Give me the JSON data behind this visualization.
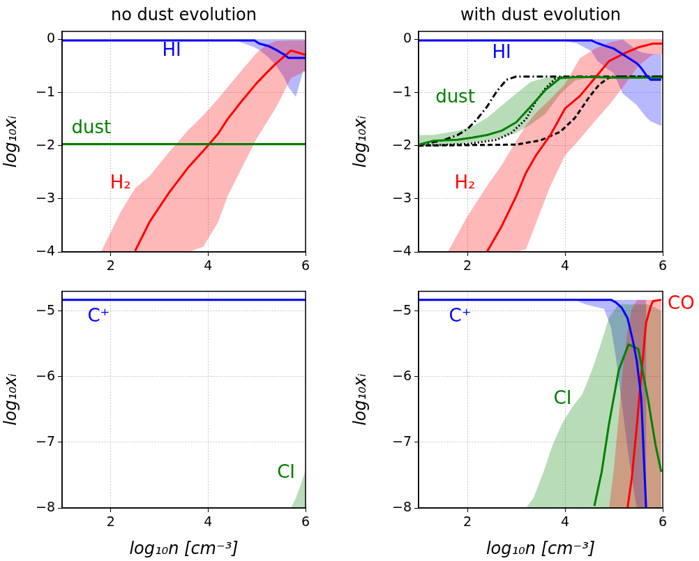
{
  "chart_data": [
    {
      "type": "line",
      "title": "no dust evolution",
      "ylabel": "log₁₀xᵢ",
      "xlim": [
        1,
        6
      ],
      "xticks": [
        2,
        4,
        6
      ],
      "ylim": [
        -4,
        0.15
      ],
      "yticks": [
        0,
        -1,
        -2,
        -3,
        -4
      ],
      "grid": true,
      "series": [
        {
          "name": "HI",
          "color": "#0000ff",
          "x": [
            1,
            4.6,
            4.95,
            5.05,
            5.25,
            5.4,
            5.55,
            5.65,
            5.8,
            5.95,
            6
          ],
          "values": [
            -0.02,
            -0.02,
            -0.02,
            -0.08,
            -0.13,
            -0.2,
            -0.28,
            -0.35,
            -0.35,
            -0.35,
            -0.35
          ],
          "upper": [
            0,
            0,
            0,
            0,
            0,
            0,
            0,
            0,
            0,
            0,
            0
          ],
          "lower": [
            -0.02,
            -0.03,
            -0.15,
            -0.2,
            -0.35,
            -0.5,
            -0.7,
            -0.9,
            -1.08,
            -0.6,
            -0.6
          ]
        },
        {
          "name": "dust",
          "color": "#008000",
          "x": [
            1,
            6
          ],
          "values": [
            -1.97,
            -1.97
          ]
        },
        {
          "name": "H₂",
          "color": "#ff0000",
          "x": [
            1.8,
            2.2,
            2.5,
            2.8,
            3.2,
            3.6,
            3.9,
            4.2,
            4.4,
            4.7,
            5.0,
            5.2,
            5.4,
            5.7,
            6.0
          ],
          "values": [
            null,
            null,
            -3.98,
            -3.43,
            -2.88,
            -2.4,
            -2.1,
            -1.78,
            -1.5,
            -1.15,
            -0.82,
            -0.63,
            -0.45,
            -0.21,
            -0.29
          ],
          "upper": [
            -4,
            -3.25,
            -2.8,
            -2.57,
            -2.12,
            -1.7,
            -1.43,
            -1.12,
            -0.9,
            -0.57,
            -0.25,
            -0.1,
            -0.03,
            -0.02,
            -0.02
          ],
          "lower": [
            -4,
            -4,
            -4,
            -4,
            -4,
            -4,
            -3.9,
            -3.45,
            -2.95,
            -2.4,
            -1.86,
            -1.57,
            -1.27,
            -0.73,
            -0.6
          ]
        }
      ]
    },
    {
      "type": "line",
      "title": "with dust evolution",
      "ylabel": "log₁₀xᵢ",
      "xlim": [
        1,
        6
      ],
      "xticks": [
        2,
        4,
        6
      ],
      "ylim": [
        -4,
        0.15
      ],
      "yticks": [
        0,
        -1,
        -2,
        -3,
        -4
      ],
      "grid": true,
      "series": [
        {
          "name": "HI",
          "color": "#0000ff",
          "x": [
            1,
            3.9,
            4.23,
            4.54,
            4.66,
            4.85,
            4.99,
            5.18,
            5.47,
            5.56,
            5.66,
            5.75,
            5.97
          ],
          "values": [
            -0.02,
            -0.02,
            -0.02,
            -0.02,
            -0.07,
            -0.13,
            -0.17,
            -0.28,
            -0.45,
            -0.54,
            -0.67,
            -0.76,
            -0.76
          ],
          "upper": [
            0,
            0,
            0,
            0,
            0,
            0,
            0,
            0,
            -0.2,
            -0.24,
            -0.26,
            -0.27,
            -0.28
          ],
          "lower": [
            -0.02,
            -0.02,
            -0.07,
            -0.22,
            -0.4,
            -0.55,
            -0.63,
            -1.02,
            -1.24,
            -1.35,
            -1.46,
            -1.54,
            -1.63
          ]
        },
        {
          "name": "dust",
          "color": "#008000",
          "x": [
            1.0,
            1.3,
            1.8,
            2.1,
            2.4,
            2.7,
            3.0,
            3.3,
            3.6,
            3.9,
            4.2,
            4.5,
            5.0,
            6.0
          ],
          "values": [
            -1.98,
            -1.91,
            -1.89,
            -1.85,
            -1.8,
            -1.72,
            -1.56,
            -1.26,
            -0.95,
            -0.73,
            -0.71,
            -0.71,
            -0.72,
            -0.72
          ],
          "upper": [
            -1.8,
            -1.8,
            -1.72,
            -1.64,
            -1.48,
            -1.25,
            -1.02,
            -0.8,
            -0.72,
            -0.71,
            -0.7,
            -0.7,
            -0.7,
            -0.7
          ],
          "lower": [
            -2.02,
            -2.01,
            -1.97,
            -1.94,
            -1.9,
            -1.85,
            -1.76,
            -1.6,
            -1.4,
            -1.03,
            -0.78,
            -0.72,
            -0.72,
            -0.72
          ]
        },
        {
          "name": "H₂",
          "color": "#ff0000",
          "x": [
            1.6,
            2.0,
            2.4,
            2.7,
            3.0,
            3.2,
            3.4,
            3.7,
            4.0,
            4.3,
            4.6,
            4.9,
            5.2,
            5.5,
            5.8,
            6.0
          ],
          "values": [
            null,
            null,
            -4,
            -3.52,
            -2.95,
            -2.51,
            -2.19,
            -1.8,
            -1.3,
            -1.07,
            -0.74,
            -0.41,
            -0.27,
            -0.15,
            -0.08,
            -0.08
          ],
          "upper": [
            -4,
            -3.33,
            -2.76,
            -2.37,
            -1.91,
            -1.62,
            -1.39,
            -1.12,
            -0.84,
            -0.36,
            -0.18,
            -0.06,
            0,
            0,
            0,
            0
          ],
          "lower": [
            -4,
            -4,
            -4,
            -4,
            -4,
            -3.95,
            -3.47,
            -2.76,
            -2.18,
            -1.88,
            -1.55,
            -1.24,
            -0.88,
            -0.5,
            -0.28,
            -0.28
          ]
        },
        {
          "color": "#000000",
          "line_style": "dashdot",
          "x": [
            1.0,
            1.5,
            1.8,
            2.0,
            2.2,
            2.4,
            2.6,
            2.8,
            3.0,
            6.0
          ],
          "values": [
            -1.99,
            -1.9,
            -1.8,
            -1.69,
            -1.5,
            -1.27,
            -0.98,
            -0.76,
            -0.7,
            -0.7
          ]
        },
        {
          "color": "#000000",
          "line_style": "dotted",
          "x": [
            1.0,
            2.0,
            2.6,
            2.9,
            3.2,
            3.4,
            3.6,
            3.8,
            4.0
          ],
          "values": [
            -2,
            -1.97,
            -1.89,
            -1.76,
            -1.5,
            -1.17,
            -0.92,
            -0.74,
            -0.7
          ]
        },
        {
          "color": "#000000",
          "line_style": "dashed",
          "x": [
            1.0,
            3.0,
            3.5,
            3.9,
            4.2,
            4.5,
            4.7,
            4.9,
            5.2,
            5.97
          ],
          "values": [
            -2,
            -1.98,
            -1.9,
            -1.74,
            -1.48,
            -1.08,
            -0.85,
            -0.72,
            -0.7,
            -0.7
          ]
        }
      ]
    },
    {
      "type": "line",
      "ylabel": "log₁₀xᵢ",
      "xlabel": "log₁₀n [cm⁻³]",
      "xlim": [
        1,
        6
      ],
      "xticks": [
        2,
        4,
        6
      ],
      "ylim": [
        -8,
        -4.7
      ],
      "yticks": [
        -5,
        -6,
        -7,
        -8
      ],
      "grid": true,
      "series": [
        {
          "name": "C⁺",
          "color": "#0000ff",
          "x": [
            1,
            6
          ],
          "values": [
            -4.83,
            -4.83
          ]
        },
        {
          "name": "CI",
          "color": "#008000",
          "x": [
            5.7,
            5.8,
            5.9,
            6.0
          ],
          "values": [
            null,
            null,
            null,
            null
          ],
          "upper": [
            -8,
            -7.85,
            -7.65,
            -7.42
          ],
          "lower": [
            -8,
            -8,
            -8,
            -8
          ]
        }
      ]
    },
    {
      "type": "line",
      "ylabel": "log₁₀xᵢ",
      "xlabel": "log₁₀n [cm⁻³]",
      "xlim": [
        1,
        6
      ],
      "xticks": [
        2,
        4,
        6
      ],
      "ylim": [
        -8,
        -4.7
      ],
      "yticks": [
        -5,
        -6,
        -7,
        -8
      ],
      "grid": true,
      "series": [
        {
          "name": "C⁺",
          "color": "#0000ff",
          "x": [
            1,
            4.2,
            4.42,
            4.8,
            4.94,
            5.04,
            5.16,
            5.28,
            5.4,
            5.47,
            5.56,
            5.61,
            5.66
          ],
          "values": [
            -4.83,
            -4.83,
            -4.83,
            -4.83,
            -4.83,
            -4.87,
            -4.95,
            -5.11,
            -5.49,
            -5.77,
            -6.33,
            -7.17,
            -8
          ],
          "upper": [
            -4.83,
            -4.83,
            -4.83,
            -4.83,
            -4.83,
            -4.83,
            -4.83,
            -4.83,
            -4.83,
            -4.83,
            -4.83,
            -4.83,
            -4.83
          ],
          "lower": [
            -4.83,
            -4.83,
            -4.9,
            -4.97,
            -5.25,
            -5.7,
            -6.4,
            -7.1,
            -7.7,
            -8,
            -8,
            -8,
            -8
          ]
        },
        {
          "name": "CI",
          "color": "#008000",
          "x": [
            3.2,
            3.35,
            3.55,
            3.75,
            3.95,
            4.15,
            4.35,
            4.5,
            4.6,
            4.75,
            4.9,
            5.1,
            5.3,
            5.5,
            5.7,
            5.85,
            5.97
          ],
          "values": [
            null,
            null,
            null,
            null,
            null,
            null,
            null,
            null,
            -7.97,
            -7.45,
            -6.72,
            -5.9,
            -5.51,
            -5.58,
            -6.35,
            -7.03,
            -7.45
          ],
          "upper": [
            -8,
            -7.85,
            -7.47,
            -7.03,
            -6.7,
            -6.46,
            -6.27,
            -6.0,
            -5.8,
            -5.46,
            -5.1,
            -4.9,
            -4.9,
            -4.9,
            -4.9,
            -4.95,
            -5.0
          ],
          "lower": [
            -8,
            -8,
            -8,
            -8,
            -8,
            -8,
            -8,
            -8,
            -8,
            -8,
            -8,
            -8,
            -8,
            -8,
            -8,
            -8,
            -8
          ]
        },
        {
          "name": "CO",
          "color": "#ff0000",
          "x": [
            4.9,
            5.0,
            5.1,
            5.2,
            5.28,
            5.37,
            5.47,
            5.56,
            5.66,
            5.75,
            5.8,
            5.97
          ],
          "values": [
            null,
            null,
            null,
            null,
            -8,
            -7.52,
            -6.75,
            -5.98,
            -5.18,
            -4.94,
            -4.85,
            -4.83
          ],
          "upper": [
            -8,
            -7.4,
            -6.6,
            -5.75,
            -5.3,
            -4.97,
            -4.83,
            -4.83,
            -4.83,
            -4.83,
            -4.83,
            -4.83
          ],
          "lower": [
            -8,
            -8,
            -8,
            -8,
            -8,
            -8,
            -8,
            -8,
            -8,
            -8,
            -8,
            -8
          ]
        }
      ]
    }
  ]
}
